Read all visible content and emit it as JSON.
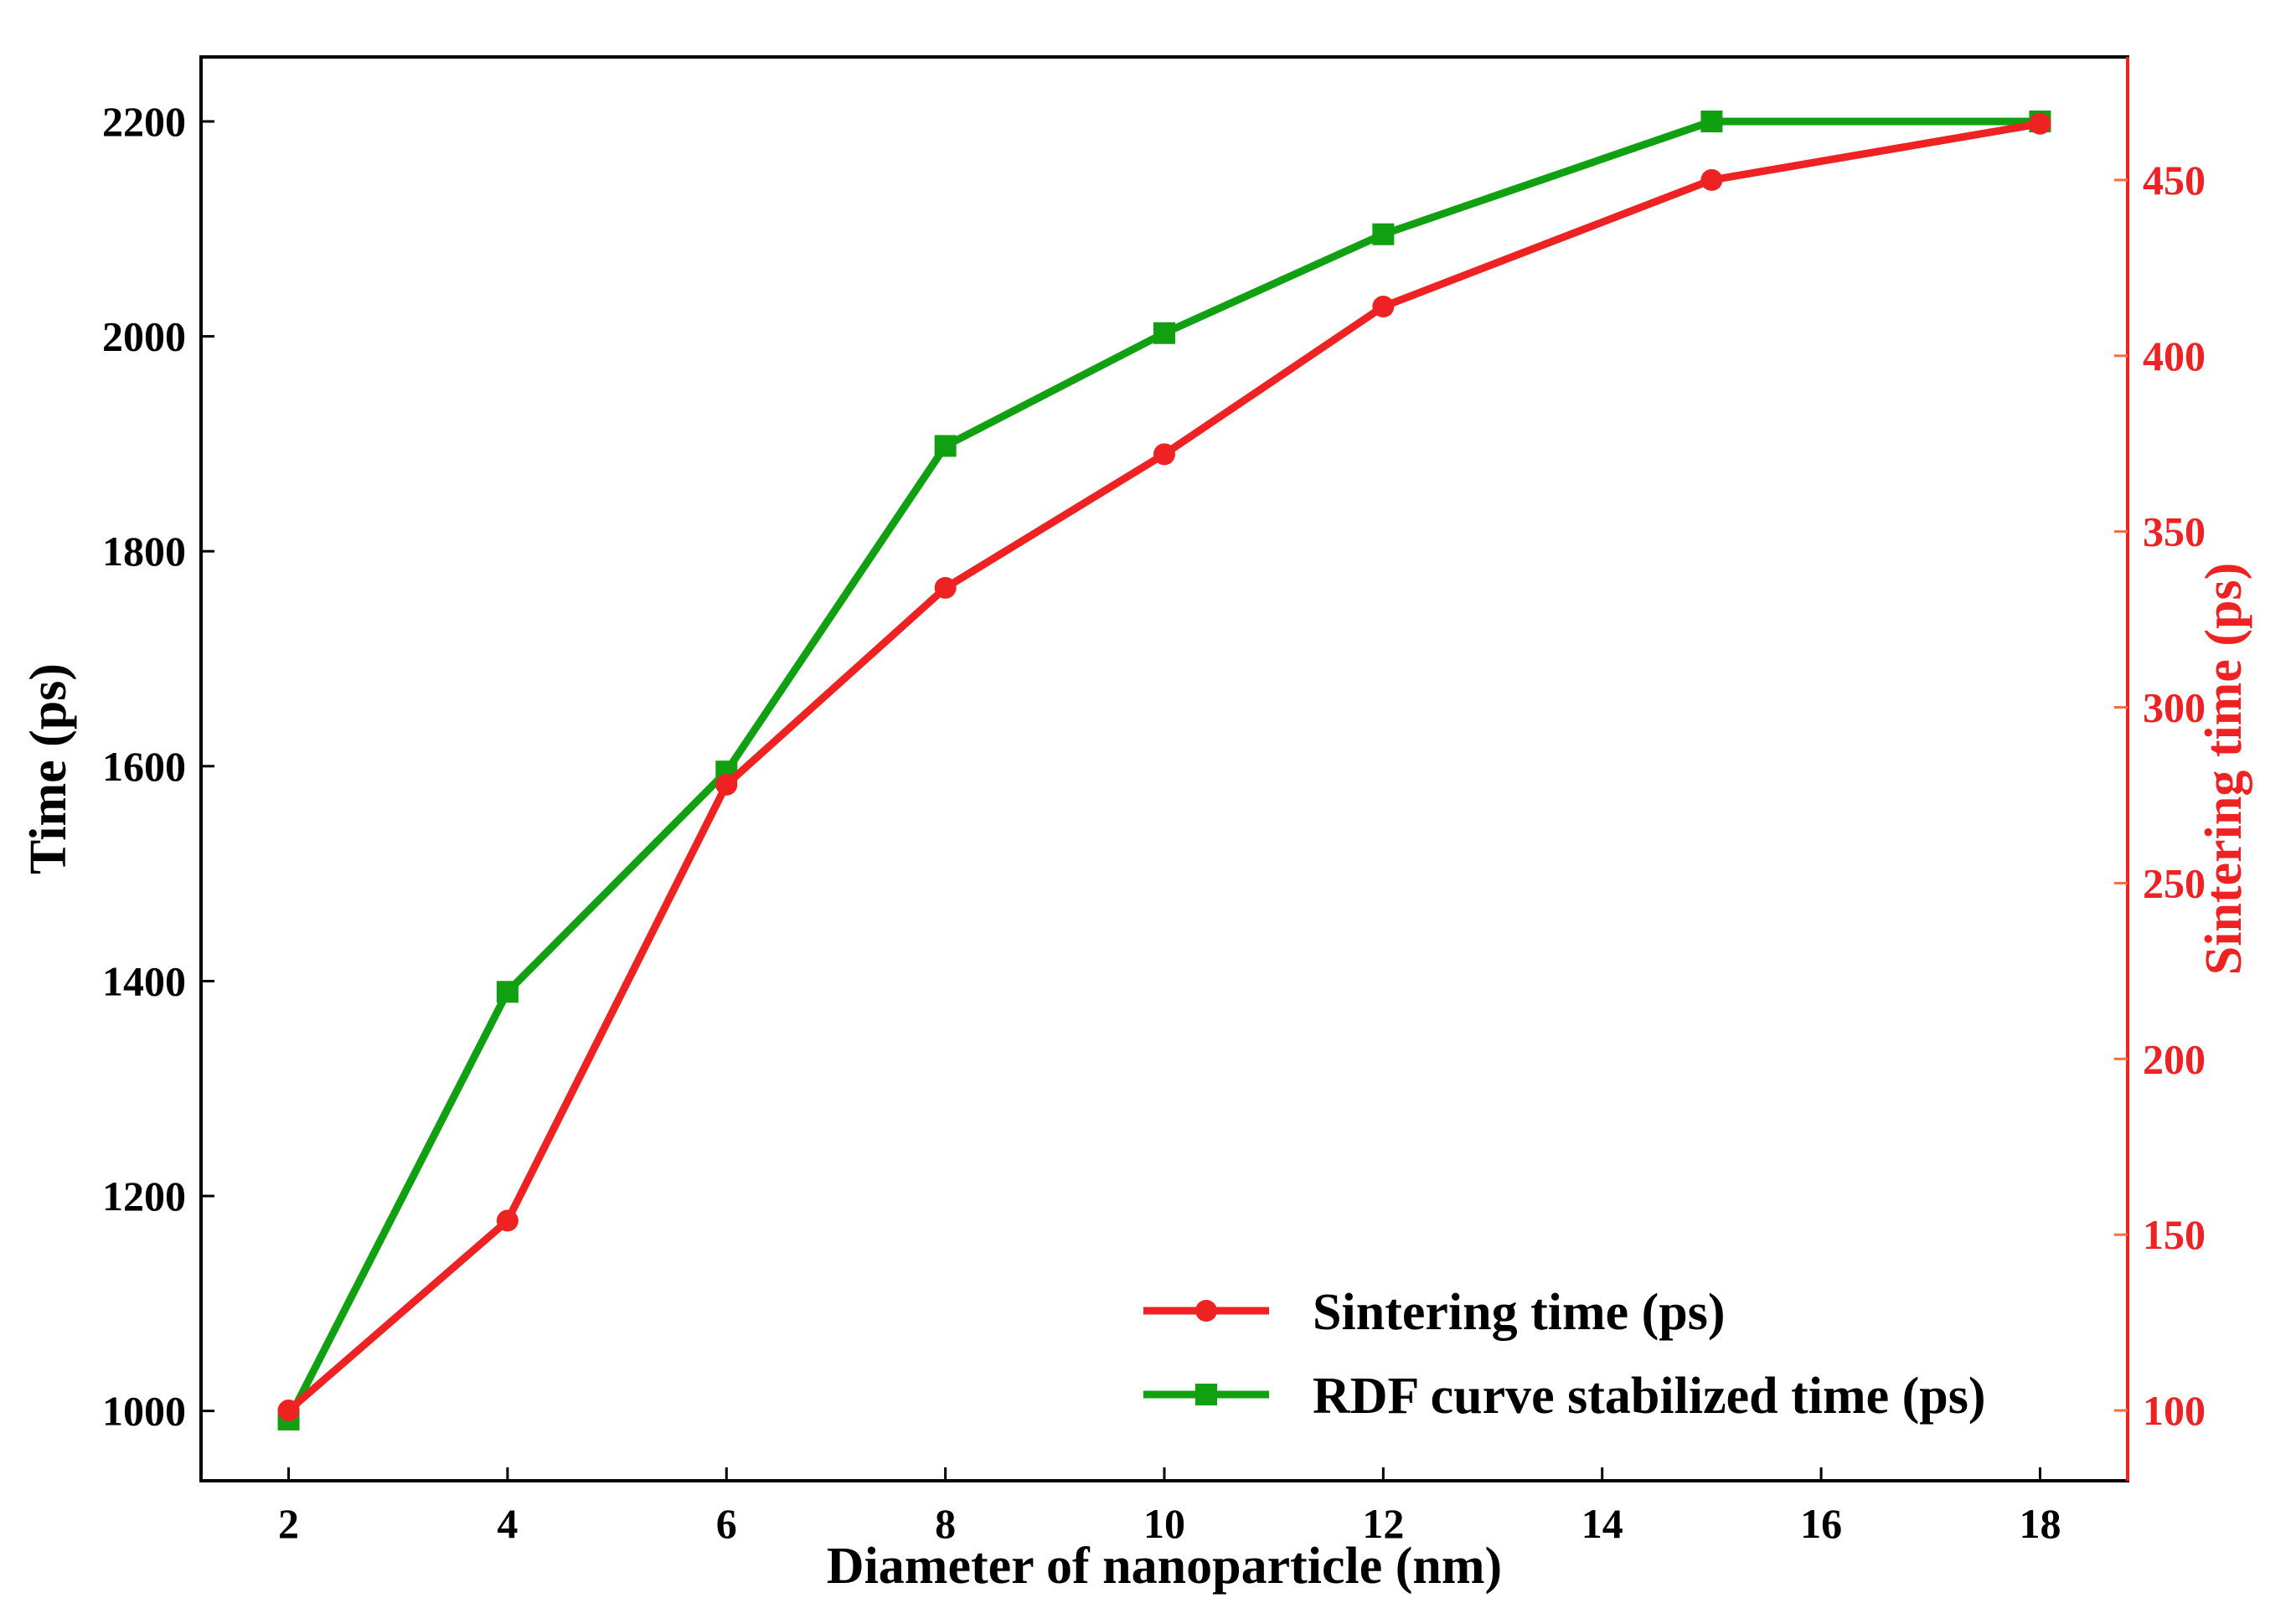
{
  "chart_data": {
    "type": "line",
    "title": "",
    "xlabel": "Diameter of nanoparticle (nm)",
    "ylabel_left": "Time (ps)",
    "ylabel_right": "Sintering time (ps)",
    "xlim": [
      1.2,
      18.8
    ],
    "ylim_left": [
      935,
      2260
    ],
    "ylim_right": [
      80,
      485
    ],
    "x_ticks": [
      2,
      4,
      6,
      8,
      10,
      12,
      14,
      16,
      18
    ],
    "y_left_ticks": [
      1000,
      1200,
      1400,
      1600,
      1800,
      2000,
      2200
    ],
    "y_right_ticks": [
      100,
      150,
      200,
      250,
      300,
      350,
      400,
      450
    ],
    "grid": false,
    "legend_position": "bottom-right",
    "series": [
      {
        "name": "Sintering time (ps)",
        "axis": "right",
        "marker": "circle",
        "color": "#ee2222",
        "x": [
          2,
          4,
          6,
          8,
          10,
          12,
          15,
          18
        ],
        "values": [
          100,
          154,
          278,
          334,
          372,
          414,
          450,
          466
        ]
      },
      {
        "name": "RDF curve stabilized time (ps)",
        "axis": "left",
        "marker": "square",
        "color": "#11a011",
        "x": [
          2,
          4,
          6,
          8,
          10,
          12,
          15,
          18
        ],
        "values": [
          992,
          1390,
          1595,
          1898,
          2003,
          2095,
          2200,
          2200
        ]
      }
    ],
    "colors": {
      "axis": "#000000",
      "right_axis": "#ee2222",
      "right_ticks": "#ff6a3d"
    }
  }
}
